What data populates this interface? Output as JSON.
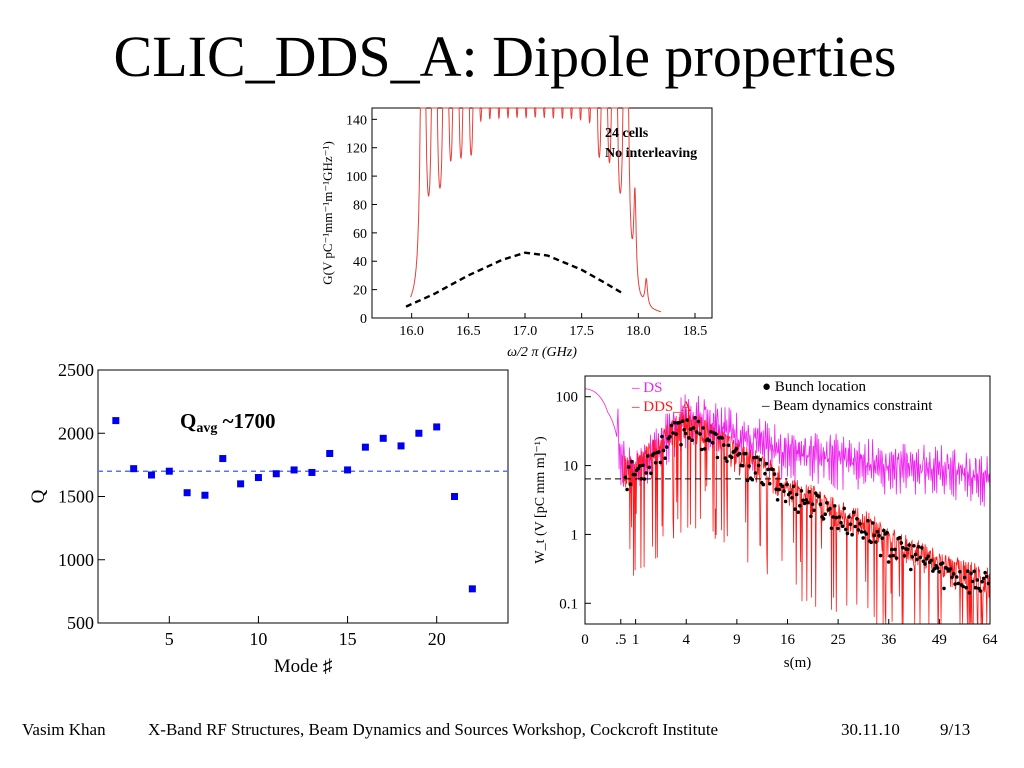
{
  "slide": {
    "title": "CLIC_DDS_A: Dipole properties"
  },
  "footer": {
    "author": "Vasim Khan",
    "event": "X-Band RF Structures, Beam Dynamics and Sources Workshop, Cockcroft Institute",
    "date": "30.11.10",
    "page": "9/13"
  },
  "colors": {
    "spectrum_line": "#e8403a",
    "envelope": "#000000",
    "q_marker": "#0000ee",
    "q_avg_line": "#5577ee",
    "ds_wake": "#ee22ee",
    "dds_a_wake": "#ff1a1a",
    "bunch_marker": "#000000"
  },
  "chart_data": [
    {
      "id": "gain-spectrum",
      "type": "line",
      "ylabel": "G(V pC⁻¹mm⁻¹m⁻¹GHz⁻¹)",
      "xlabel": "ω/2 π (GHz)",
      "xlim": [
        15.65,
        18.65
      ],
      "ylim": [
        0,
        148
      ],
      "xticks": [
        "16.0",
        "16.5",
        "17.0",
        "17.5",
        "18.0",
        "18.5"
      ],
      "yticks": [
        "0",
        "20",
        "40",
        "60",
        "80",
        "100",
        "120",
        "140"
      ],
      "annotation_lines": [
        "24 cells",
        "No interleaving"
      ],
      "peak_frequencies": [
        16.1,
        16.2,
        16.3,
        16.39,
        16.48,
        16.57,
        16.65,
        16.73,
        16.81,
        16.89,
        16.97,
        17.05,
        17.13,
        17.21,
        17.29,
        17.37,
        17.45,
        17.53,
        17.61,
        17.7,
        17.79,
        17.89,
        17.97,
        18.07
      ],
      "peak_heights": [
        148,
        148,
        148,
        148,
        148,
        148,
        148,
        148,
        148,
        148,
        148,
        148,
        148,
        148,
        148,
        148,
        148,
        148,
        148,
        148,
        148,
        148,
        68,
        19
      ],
      "envelope": {
        "x": [
          15.95,
          16.2,
          16.5,
          16.8,
          17.0,
          17.2,
          17.5,
          17.7,
          17.85
        ],
        "y": [
          8,
          17,
          30,
          41,
          46,
          44,
          34,
          25,
          18
        ]
      }
    },
    {
      "id": "q-factor",
      "type": "scatter",
      "xlabel": "Mode ♯",
      "ylabel": "Q",
      "xlim": [
        1,
        24
      ],
      "ylim": [
        500,
        2500
      ],
      "xticks": [
        "5",
        "10",
        "15",
        "20"
      ],
      "yticks": [
        "500",
        "1000",
        "1500",
        "2000",
        "2500"
      ],
      "annotation": {
        "main": "Q",
        "sub": "avg",
        "rest": " ~1700"
      },
      "average": 1700,
      "x": [
        2,
        3,
        4,
        5,
        6,
        7,
        8,
        9,
        10,
        11,
        12,
        13,
        14,
        15,
        16,
        17,
        18,
        19,
        20,
        21,
        22
      ],
      "y": [
        2100,
        1720,
        1670,
        1700,
        1530,
        1510,
        1800,
        1600,
        1650,
        1680,
        1710,
        1690,
        1840,
        1710,
        1890,
        1960,
        1900,
        2000,
        2050,
        1500,
        770
      ]
    },
    {
      "id": "wakefield",
      "type": "line",
      "scale": "log",
      "xlabel": "s(m)",
      "ylabel": "W_t (V [pC mm m]⁻¹)",
      "xlim": [
        0,
        64
      ],
      "ylim": [
        0.05,
        200
      ],
      "xticks": [
        "0",
        ".5",
        "1",
        "4",
        "9",
        "16",
        "25",
        "36",
        "49",
        "64"
      ],
      "yticks": [
        "0.1",
        "1",
        "10",
        "100"
      ],
      "constraint": 6.4,
      "series": [
        {
          "name": "DS",
          "color": "#ee22ee"
        },
        {
          "name": "DDS_A",
          "color": "#ff1a1a"
        }
      ],
      "legend_right": [
        {
          "marker": "●",
          "label": "Bunch location"
        },
        {
          "marker": "–",
          "label": "Beam dynamics constraint"
        }
      ],
      "ds_envelope": {
        "s": [
          0,
          0.2,
          0.5,
          1,
          2,
          4,
          6,
          9,
          16,
          25,
          36,
          49,
          64
        ],
        "w": [
          130,
          60,
          8,
          5,
          12,
          35,
          30,
          18,
          12,
          9,
          7,
          6,
          5
        ]
      },
      "dds_a_envelope": {
        "s": [
          0.5,
          1,
          2,
          4,
          6,
          9,
          16,
          25,
          36,
          49,
          64
        ],
        "w": [
          8,
          8,
          15,
          40,
          25,
          12,
          4,
          1.8,
          0.7,
          0.3,
          0.18
        ]
      }
    }
  ]
}
